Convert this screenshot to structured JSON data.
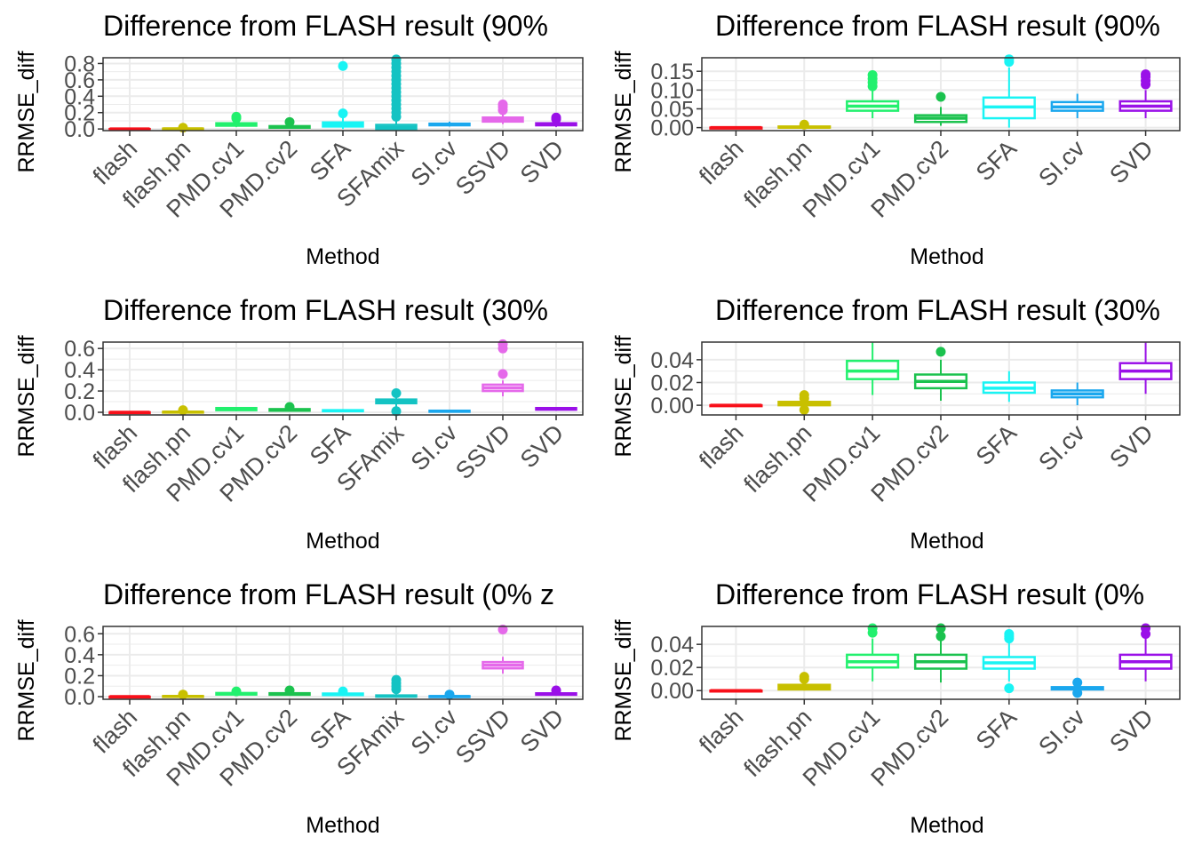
{
  "colors": {
    "flash": "#f8101a",
    "flash.pn": "#c8c000",
    "PMD.cv1": "#22f06e",
    "PMD.cv2": "#1bc24e",
    "SFA": "#19f4f4",
    "SFAmix": "#14c3c3",
    "SI.cv": "#1aa7ee",
    "SSVD": "#e569ea",
    "SVD": "#9a10e8"
  },
  "chart_data": [
    {
      "type": "box",
      "title": "Difference from FLASH result (90%",
      "xlabel": "Method",
      "ylabel": "RRMSE_diff",
      "ylim": [
        -0.02,
        0.87
      ],
      "yticks": [
        0.0,
        0.2,
        0.4,
        0.6,
        0.8
      ],
      "ytick_labels": [
        "0.0",
        "0.2",
        "0.4",
        "0.6",
        "0.8"
      ],
      "grid": true,
      "categories": [
        "flash",
        "flash.pn",
        "PMD.cv1",
        "PMD.cv2",
        "SFA",
        "SFAmix",
        "SI.cv",
        "SSVD",
        "SVD"
      ],
      "boxes": [
        {
          "q1": 0.0,
          "median": 0.0,
          "q3": 0.0,
          "whisker_low": 0.0,
          "whisker_high": 0.0,
          "outliers": []
        },
        {
          "q1": 0.0,
          "median": 0.002,
          "q3": 0.005,
          "whisker_low": 0.0,
          "whisker_high": 0.01,
          "outliers": [
            0.015
          ]
        },
        {
          "q1": 0.04,
          "median": 0.055,
          "q3": 0.07,
          "whisker_low": 0.025,
          "whisker_high": 0.1,
          "outliers": [
            0.13,
            0.15
          ]
        },
        {
          "q1": 0.015,
          "median": 0.025,
          "q3": 0.035,
          "whisker_low": 0.005,
          "whisker_high": 0.06,
          "outliers": [
            0.085
          ]
        },
        {
          "q1": 0.03,
          "median": 0.055,
          "q3": 0.08,
          "whisker_low": 0.0,
          "whisker_high": 0.14,
          "outliers": [
            0.19,
            0.77
          ]
        },
        {
          "q1": 0.0,
          "median": 0.02,
          "q3": 0.05,
          "whisker_low": 0.0,
          "whisker_high": 0.12,
          "outliers": [
            0.15,
            0.2,
            0.25,
            0.3,
            0.35,
            0.4,
            0.45,
            0.5,
            0.55,
            0.6,
            0.65,
            0.7,
            0.75,
            0.8,
            0.85
          ]
        },
        {
          "q1": 0.045,
          "median": 0.055,
          "q3": 0.065,
          "whisker_low": 0.03,
          "whisker_high": 0.09,
          "outliers": []
        },
        {
          "q1": 0.09,
          "median": 0.11,
          "q3": 0.14,
          "whisker_low": 0.06,
          "whisker_high": 0.2,
          "outliers": [
            0.23,
            0.27,
            0.3
          ]
        },
        {
          "q1": 0.045,
          "median": 0.055,
          "q3": 0.07,
          "whisker_low": 0.025,
          "whisker_high": 0.1,
          "outliers": [
            0.12,
            0.14
          ]
        }
      ]
    },
    {
      "type": "box",
      "title": "Difference from FLASH result (90%",
      "xlabel": "Method",
      "ylabel": "RRMSE_diff",
      "ylim": [
        -0.008,
        0.186
      ],
      "yticks": [
        0.0,
        0.05,
        0.1,
        0.15
      ],
      "ytick_labels": [
        "0.00",
        "0.05",
        "0.10",
        "0.15"
      ],
      "grid": true,
      "categories": [
        "flash",
        "flash.pn",
        "PMD.cv1",
        "PMD.cv2",
        "SFA",
        "SI.cv",
        "SVD"
      ],
      "boxes": [
        {
          "q1": 0.0,
          "median": 0.0,
          "q3": 0.0,
          "whisker_low": 0.0,
          "whisker_high": 0.0,
          "outliers": []
        },
        {
          "q1": 0.0,
          "median": 0.001,
          "q3": 0.003,
          "whisker_low": 0.0,
          "whisker_high": 0.006,
          "outliers": [
            0.008
          ]
        },
        {
          "q1": 0.045,
          "median": 0.057,
          "q3": 0.07,
          "whisker_low": 0.025,
          "whisker_high": 0.105,
          "outliers": [
            0.11,
            0.12,
            0.13,
            0.14
          ]
        },
        {
          "q1": 0.015,
          "median": 0.025,
          "q3": 0.033,
          "whisker_low": 0.005,
          "whisker_high": 0.055,
          "outliers": [
            0.082
          ]
        },
        {
          "q1": 0.025,
          "median": 0.055,
          "q3": 0.08,
          "whisker_low": 0.0,
          "whisker_high": 0.16,
          "outliers": [
            0.175,
            0.182
          ]
        },
        {
          "q1": 0.045,
          "median": 0.055,
          "q3": 0.068,
          "whisker_low": 0.025,
          "whisker_high": 0.09,
          "outliers": []
        },
        {
          "q1": 0.045,
          "median": 0.057,
          "q3": 0.07,
          "whisker_low": 0.025,
          "whisker_high": 0.1,
          "outliers": [
            0.115,
            0.125,
            0.135,
            0.142
          ]
        }
      ]
    },
    {
      "type": "box",
      "title": "Difference from FLASH result (30%",
      "xlabel": "Method",
      "ylabel": "RRMSE_diff",
      "ylim": [
        -0.025,
        0.66
      ],
      "yticks": [
        0.0,
        0.2,
        0.4,
        0.6
      ],
      "ytick_labels": [
        "0.0",
        "0.2",
        "0.4",
        "0.6"
      ],
      "grid": true,
      "categories": [
        "flash",
        "flash.pn",
        "PMD.cv1",
        "PMD.cv2",
        "SFA",
        "SFAmix",
        "SI.cv",
        "SSVD",
        "SVD"
      ],
      "boxes": [
        {
          "q1": 0.0,
          "median": 0.0,
          "q3": 0.0,
          "whisker_low": 0.0,
          "whisker_high": 0.0,
          "outliers": []
        },
        {
          "q1": 0.0,
          "median": 0.002,
          "q3": 0.005,
          "whisker_low": 0.0,
          "whisker_high": 0.01,
          "outliers": [
            0.02
          ]
        },
        {
          "q1": 0.02,
          "median": 0.03,
          "q3": 0.04,
          "whisker_low": 0.01,
          "whisker_high": 0.05,
          "outliers": []
        },
        {
          "q1": 0.015,
          "median": 0.022,
          "q3": 0.03,
          "whisker_low": 0.005,
          "whisker_high": 0.045,
          "outliers": [
            0.05
          ]
        },
        {
          "q1": 0.01,
          "median": 0.015,
          "q3": 0.02,
          "whisker_low": 0.005,
          "whisker_high": 0.03,
          "outliers": []
        },
        {
          "q1": 0.085,
          "median": 0.1,
          "q3": 0.12,
          "whisker_low": 0.05,
          "whisker_high": 0.15,
          "outliers": [
            0.18,
            0.01
          ]
        },
        {
          "q1": 0.005,
          "median": 0.01,
          "q3": 0.015,
          "whisker_low": 0.0,
          "whisker_high": 0.02,
          "outliers": []
        },
        {
          "q1": 0.2,
          "median": 0.23,
          "q3": 0.26,
          "whisker_low": 0.15,
          "whisker_high": 0.3,
          "outliers": [
            0.36,
            0.6,
            0.64
          ]
        },
        {
          "q1": 0.025,
          "median": 0.03,
          "q3": 0.04,
          "whisker_low": 0.015,
          "whisker_high": 0.05,
          "outliers": []
        }
      ]
    },
    {
      "type": "box",
      "title": "Difference from FLASH result (30%",
      "xlabel": "Method",
      "ylabel": "RRMSE_diff",
      "ylim": [
        -0.0085,
        0.0555
      ],
      "yticks": [
        0.0,
        0.02,
        0.04
      ],
      "ytick_labels": [
        "0.00",
        "0.02",
        "0.04"
      ],
      "grid": true,
      "categories": [
        "flash",
        "flash.pn",
        "PMD.cv1",
        "PMD.cv2",
        "SFA",
        "SI.cv",
        "SVD"
      ],
      "boxes": [
        {
          "q1": 0.0,
          "median": 0.0,
          "q3": 0.0,
          "whisker_low": 0.0,
          "whisker_high": 0.0,
          "outliers": []
        },
        {
          "q1": 0.0,
          "median": 0.001,
          "q3": 0.003,
          "whisker_low": -0.002,
          "whisker_high": 0.008,
          "outliers": [
            0.009,
            0.006,
            -0.004
          ]
        },
        {
          "q1": 0.023,
          "median": 0.03,
          "q3": 0.039,
          "whisker_low": 0.009,
          "whisker_high": 0.055,
          "outliers": []
        },
        {
          "q1": 0.015,
          "median": 0.021,
          "q3": 0.027,
          "whisker_low": 0.004,
          "whisker_high": 0.04,
          "outliers": [
            0.047
          ]
        },
        {
          "q1": 0.011,
          "median": 0.015,
          "q3": 0.02,
          "whisker_low": 0.003,
          "whisker_high": 0.03,
          "outliers": []
        },
        {
          "q1": 0.007,
          "median": 0.01,
          "q3": 0.013,
          "whisker_low": 0.0,
          "whisker_high": 0.02,
          "outliers": []
        },
        {
          "q1": 0.023,
          "median": 0.03,
          "q3": 0.037,
          "whisker_low": 0.01,
          "whisker_high": 0.055,
          "outliers": []
        }
      ]
    },
    {
      "type": "box",
      "title": "Difference from FLASH result (0% z",
      "xlabel": "Method",
      "ylabel": "RRMSE_diff",
      "ylim": [
        -0.025,
        0.67
      ],
      "yticks": [
        0.0,
        0.2,
        0.4,
        0.6
      ],
      "ytick_labels": [
        "0.0",
        "0.2",
        "0.4",
        "0.6"
      ],
      "grid": true,
      "categories": [
        "flash",
        "flash.pn",
        "PMD.cv1",
        "PMD.cv2",
        "SFA",
        "SFAmix",
        "SI.cv",
        "SSVD",
        "SVD"
      ],
      "boxes": [
        {
          "q1": 0.0,
          "median": 0.0,
          "q3": 0.0,
          "whisker_low": 0.0,
          "whisker_high": 0.0,
          "outliers": []
        },
        {
          "q1": 0.0,
          "median": 0.003,
          "q3": 0.006,
          "whisker_low": 0.0,
          "whisker_high": 0.012,
          "outliers": [
            0.02
          ]
        },
        {
          "q1": 0.02,
          "median": 0.027,
          "q3": 0.035,
          "whisker_low": 0.008,
          "whisker_high": 0.045,
          "outliers": [
            0.05
          ]
        },
        {
          "q1": 0.018,
          "median": 0.025,
          "q3": 0.033,
          "whisker_low": 0.008,
          "whisker_high": 0.045,
          "outliers": [
            0.06
          ]
        },
        {
          "q1": 0.015,
          "median": 0.022,
          "q3": 0.03,
          "whisker_low": 0.005,
          "whisker_high": 0.04,
          "outliers": [
            0.05
          ]
        },
        {
          "q1": 0.0,
          "median": 0.005,
          "q3": 0.012,
          "whisker_low": 0.0,
          "whisker_high": 0.025,
          "outliers": [
            0.07,
            0.1,
            0.13,
            0.16
          ]
        },
        {
          "q1": 0.0,
          "median": 0.002,
          "q3": 0.005,
          "whisker_low": 0.0,
          "whisker_high": 0.01,
          "outliers": [
            0.02
          ]
        },
        {
          "q1": 0.27,
          "median": 0.3,
          "q3": 0.33,
          "whisker_low": 0.22,
          "whisker_high": 0.38,
          "outliers": [
            0.64
          ]
        },
        {
          "q1": 0.018,
          "median": 0.025,
          "q3": 0.032,
          "whisker_low": 0.008,
          "whisker_high": 0.045,
          "outliers": [
            0.06
          ]
        }
      ]
    },
    {
      "type": "box",
      "title": "Difference from FLASH result (0%",
      "xlabel": "Method",
      "ylabel": "RRMSE_diff",
      "ylim": [
        -0.0075,
        0.0555
      ],
      "yticks": [
        0.0,
        0.02,
        0.04
      ],
      "ytick_labels": [
        "0.00",
        "0.02",
        "0.04"
      ],
      "grid": true,
      "categories": [
        "flash",
        "flash.pn",
        "PMD.cv1",
        "PMD.cv2",
        "SFA",
        "SI.cv",
        "SVD"
      ],
      "boxes": [
        {
          "q1": 0.0,
          "median": 0.0,
          "q3": 0.0,
          "whisker_low": 0.0,
          "whisker_high": 0.0,
          "outliers": []
        },
        {
          "q1": 0.001,
          "median": 0.003,
          "q3": 0.005,
          "whisker_low": 0.0,
          "whisker_high": 0.009,
          "outliers": [
            0.01,
            0.012
          ]
        },
        {
          "q1": 0.02,
          "median": 0.025,
          "q3": 0.031,
          "whisker_low": 0.008,
          "whisker_high": 0.045,
          "outliers": [
            0.05,
            0.054
          ]
        },
        {
          "q1": 0.019,
          "median": 0.025,
          "q3": 0.031,
          "whisker_low": 0.007,
          "whisker_high": 0.045,
          "outliers": [
            0.047,
            0.054
          ]
        },
        {
          "q1": 0.019,
          "median": 0.024,
          "q3": 0.029,
          "whisker_low": 0.008,
          "whisker_high": 0.042,
          "outliers": [
            0.045,
            0.047,
            0.049,
            0.002
          ]
        },
        {
          "q1": 0.001,
          "median": 0.002,
          "q3": 0.003,
          "whisker_low": 0.0,
          "whisker_high": 0.006,
          "outliers": [
            0.007,
            -0.002
          ]
        },
        {
          "q1": 0.019,
          "median": 0.025,
          "q3": 0.031,
          "whisker_low": 0.008,
          "whisker_high": 0.045,
          "outliers": [
            0.049,
            0.054
          ]
        }
      ]
    }
  ]
}
